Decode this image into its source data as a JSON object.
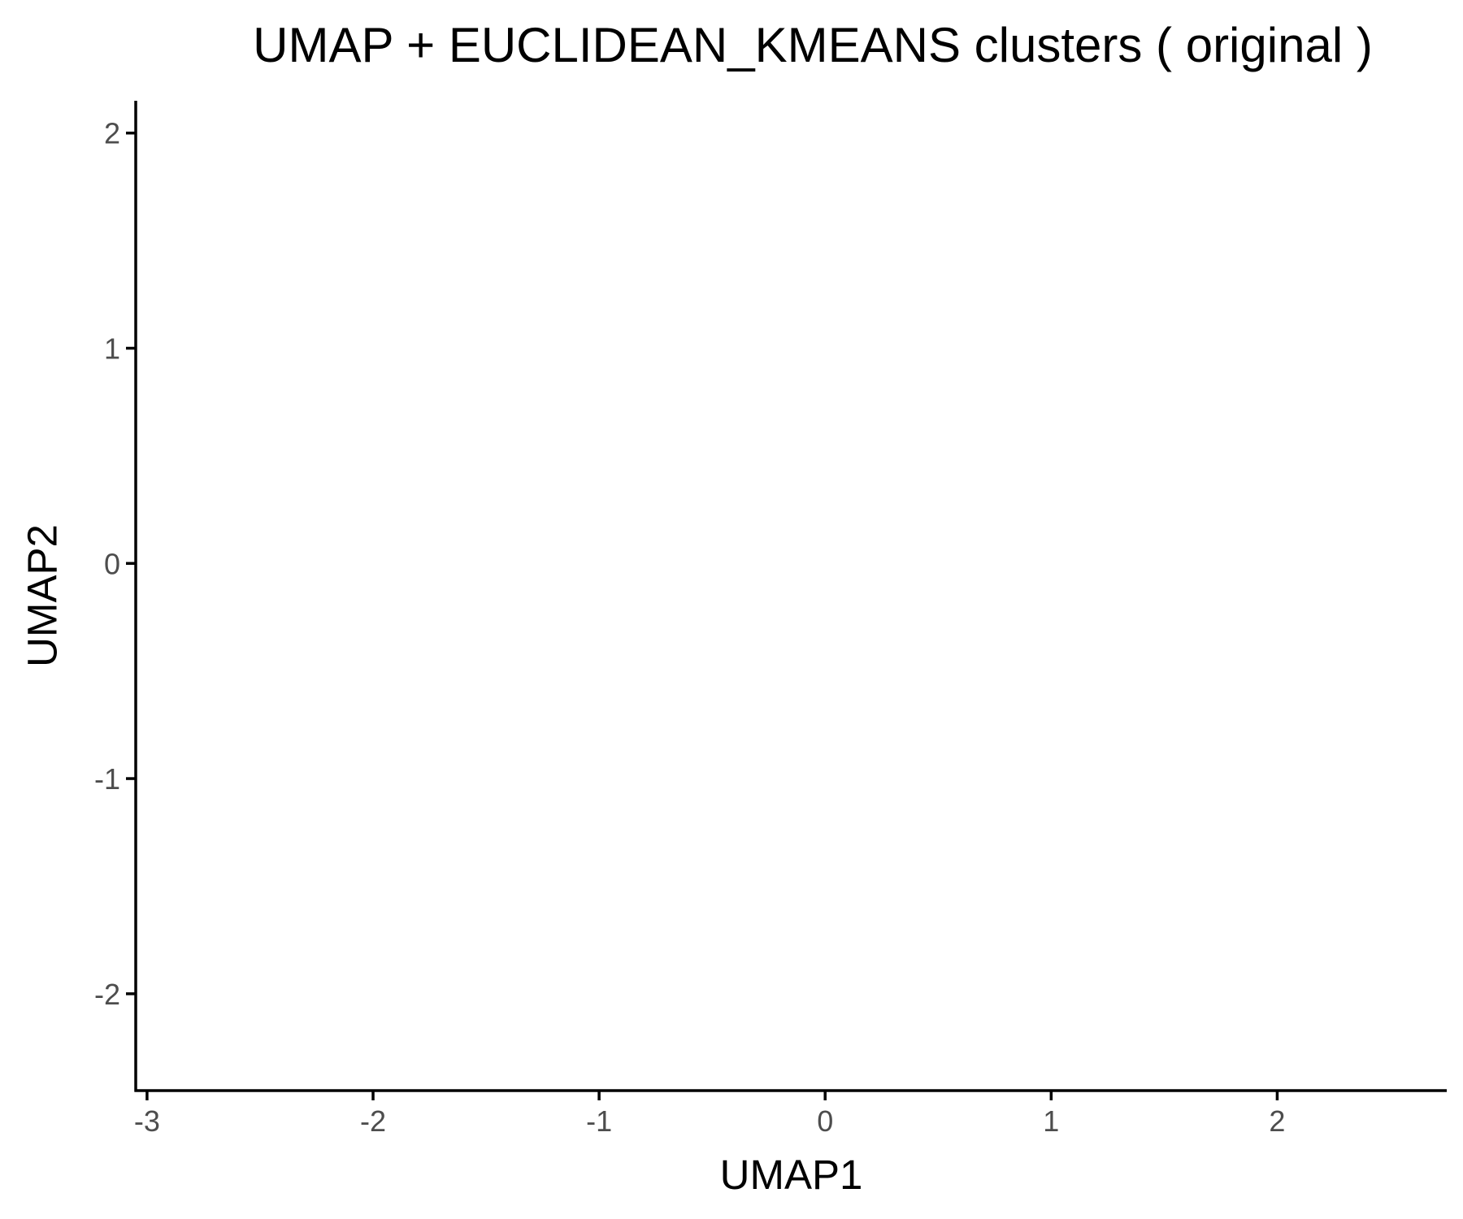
{
  "chart_data": {
    "type": "scatter",
    "title": "UMAP + EUCLIDEAN_KMEANS clusters ( original )",
    "xlabel": "UMAP1",
    "ylabel": "UMAP2",
    "xlim": [
      -3.05,
      2.75
    ],
    "ylim": [
      -2.45,
      2.15
    ],
    "x_ticks": [
      -3,
      -2,
      -1,
      0,
      1,
      2
    ],
    "y_ticks": [
      -2,
      -1,
      0,
      1,
      2
    ],
    "x_tick_labels": [
      "-3",
      "-2",
      "-1",
      "0",
      "1",
      "2"
    ],
    "y_tick_labels": [
      "-2",
      "-1",
      "0",
      "1",
      "2"
    ],
    "grid": false,
    "series": [],
    "colors": {
      "background": "#ffffff",
      "axis": "#000000",
      "tick_label": "#4d4d4d",
      "text": "#000000"
    }
  }
}
